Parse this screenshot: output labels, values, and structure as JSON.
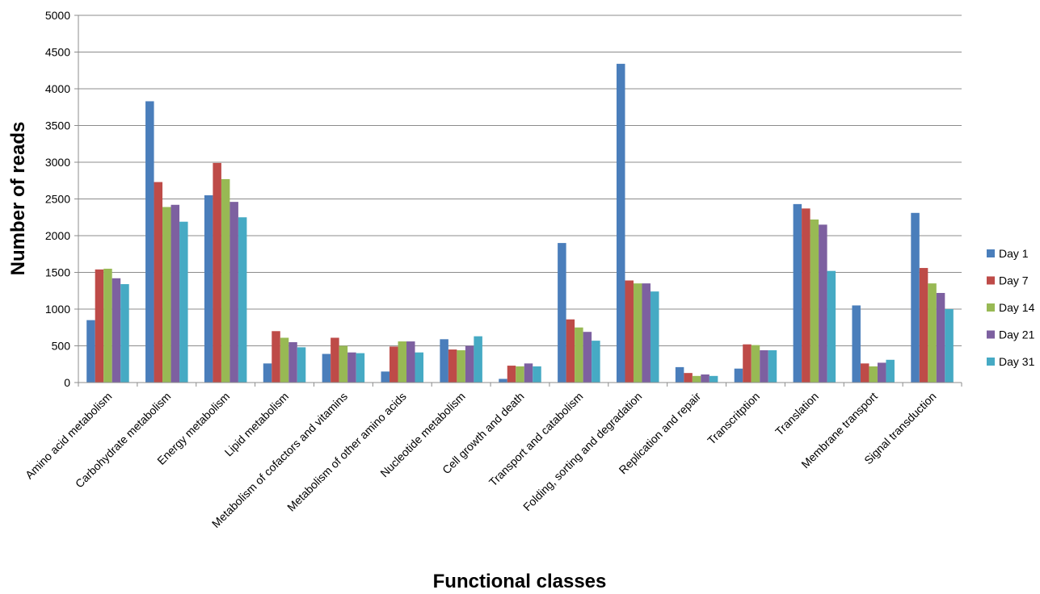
{
  "chart_data": {
    "type": "bar",
    "title": "",
    "xlabel": "Functional classes",
    "ylabel": "Number of reads",
    "ylim": [
      0,
      5000
    ],
    "yticks": [
      0,
      500,
      1000,
      1500,
      2000,
      2500,
      3000,
      3500,
      4000,
      4500,
      5000
    ],
    "grid": true,
    "legend_position": "right",
    "categories": [
      "Amino acid metabolism",
      "Carbohydrate metabolism",
      "Energy metabolism",
      "Lipid metabolism",
      "Metabolism of cofactors and vitamins",
      "Metabolism of other amino acids",
      "Nucleotide metabolism",
      "Cell growth and death",
      "Transport and catabolism",
      "Folding, sorting and degradation",
      "Replication and repair",
      "Transcritption",
      "Translation",
      "Membrane transport",
      "Signal transduction"
    ],
    "series": [
      {
        "name": "Day 1",
        "color": "#4a7ebb",
        "values": [
          850,
          3830,
          2550,
          260,
          390,
          150,
          590,
          50,
          1900,
          4340,
          210,
          190,
          2430,
          1050,
          2310
        ]
      },
      {
        "name": "Day 7",
        "color": "#be4b48",
        "values": [
          1540,
          2730,
          2990,
          700,
          610,
          490,
          450,
          230,
          860,
          1390,
          130,
          520,
          2370,
          260,
          1560
        ]
      },
      {
        "name": "Day 14",
        "color": "#98b954",
        "values": [
          1550,
          2390,
          2770,
          610,
          500,
          560,
          440,
          220,
          750,
          1350,
          90,
          510,
          2220,
          220,
          1350
        ]
      },
      {
        "name": "Day 21",
        "color": "#7d60a0",
        "values": [
          1420,
          2420,
          2460,
          550,
          410,
          560,
          500,
          260,
          690,
          1350,
          110,
          440,
          2150,
          270,
          1220
        ]
      },
      {
        "name": "Day 31",
        "color": "#46aac4",
        "values": [
          1340,
          2190,
          2250,
          480,
          400,
          410,
          630,
          220,
          570,
          1240,
          90,
          440,
          1520,
          310,
          1000
        ]
      }
    ]
  }
}
